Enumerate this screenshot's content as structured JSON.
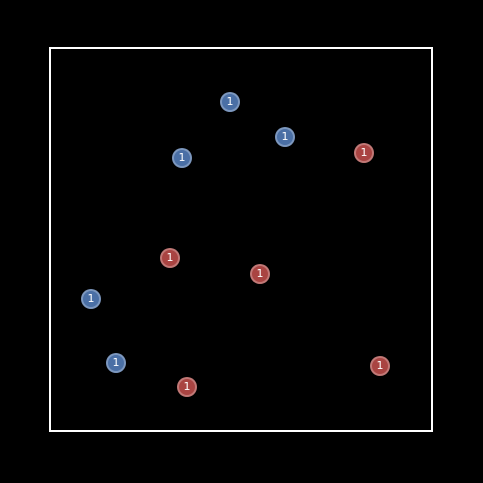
{
  "colors": {
    "background": "#000000",
    "board_border": "#ffffff",
    "blue_team": "#4a6fa5",
    "red_team": "#a94442",
    "token_text": "#ffffff"
  },
  "tokens": [
    {
      "team": "blue",
      "label": "1"
    },
    {
      "team": "blue",
      "label": "1"
    },
    {
      "team": "blue",
      "label": "1"
    },
    {
      "team": "red",
      "label": "1"
    },
    {
      "team": "red",
      "label": "1"
    },
    {
      "team": "red",
      "label": "1"
    },
    {
      "team": "blue",
      "label": "1"
    },
    {
      "team": "blue",
      "label": "1"
    },
    {
      "team": "red",
      "label": "1"
    },
    {
      "team": "red",
      "label": "1"
    }
  ]
}
